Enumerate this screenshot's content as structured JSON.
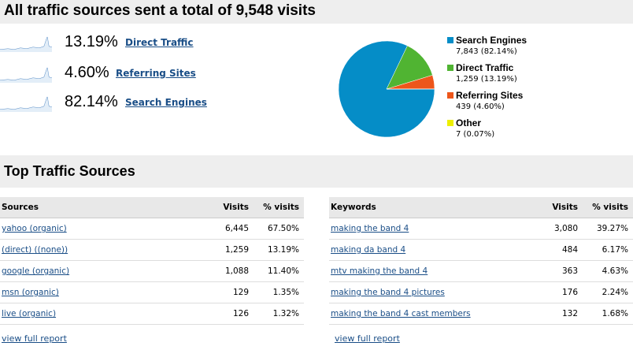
{
  "header": {
    "title": "All traffic sources sent a total of 9,548 visits"
  },
  "summary": [
    {
      "percent": "13.19%",
      "label": "Direct Traffic"
    },
    {
      "percent": "4.60%",
      "label": "Referring Sites"
    },
    {
      "percent": "82.14%",
      "label": "Search Engines"
    }
  ],
  "chart_data": {
    "type": "pie",
    "categories": [
      "Search Engines",
      "Direct Traffic",
      "Referring Sites",
      "Other"
    ],
    "values": [
      7843,
      1259,
      439,
      7
    ],
    "value_labels": [
      "7,843 (82.14%)",
      "1,259 (13.19%)",
      "439 (4.60%)",
      "7 (0.07%)"
    ],
    "colors": [
      "#058dc7",
      "#50b432",
      "#ed561b",
      "#edef00"
    ],
    "legend": "right"
  },
  "section": {
    "title": "Top Traffic Sources"
  },
  "sources_table": {
    "headers": [
      "Sources",
      "Visits",
      "% visits"
    ],
    "rows": [
      [
        "yahoo (organic)",
        "6,445",
        "67.50%"
      ],
      [
        "(direct) ((none))",
        "1,259",
        "13.19%"
      ],
      [
        "google (organic)",
        "1,088",
        "11.40%"
      ],
      [
        "msn (organic)",
        "129",
        "1.35%"
      ],
      [
        "live (organic)",
        "126",
        "1.32%"
      ]
    ],
    "footer_link": "view full report"
  },
  "keywords_table": {
    "headers": [
      "Keywords",
      "Visits",
      "% visits"
    ],
    "rows": [
      [
        "making the band 4",
        "3,080",
        "39.27%"
      ],
      [
        "making da band 4",
        "484",
        "6.17%"
      ],
      [
        "mtv making the band 4",
        "363",
        "4.63%"
      ],
      [
        "making the band 4 pictures",
        "176",
        "2.24%"
      ],
      [
        "making the band 4 cast members",
        "132",
        "1.68%"
      ]
    ],
    "footer_link": "view full report"
  }
}
